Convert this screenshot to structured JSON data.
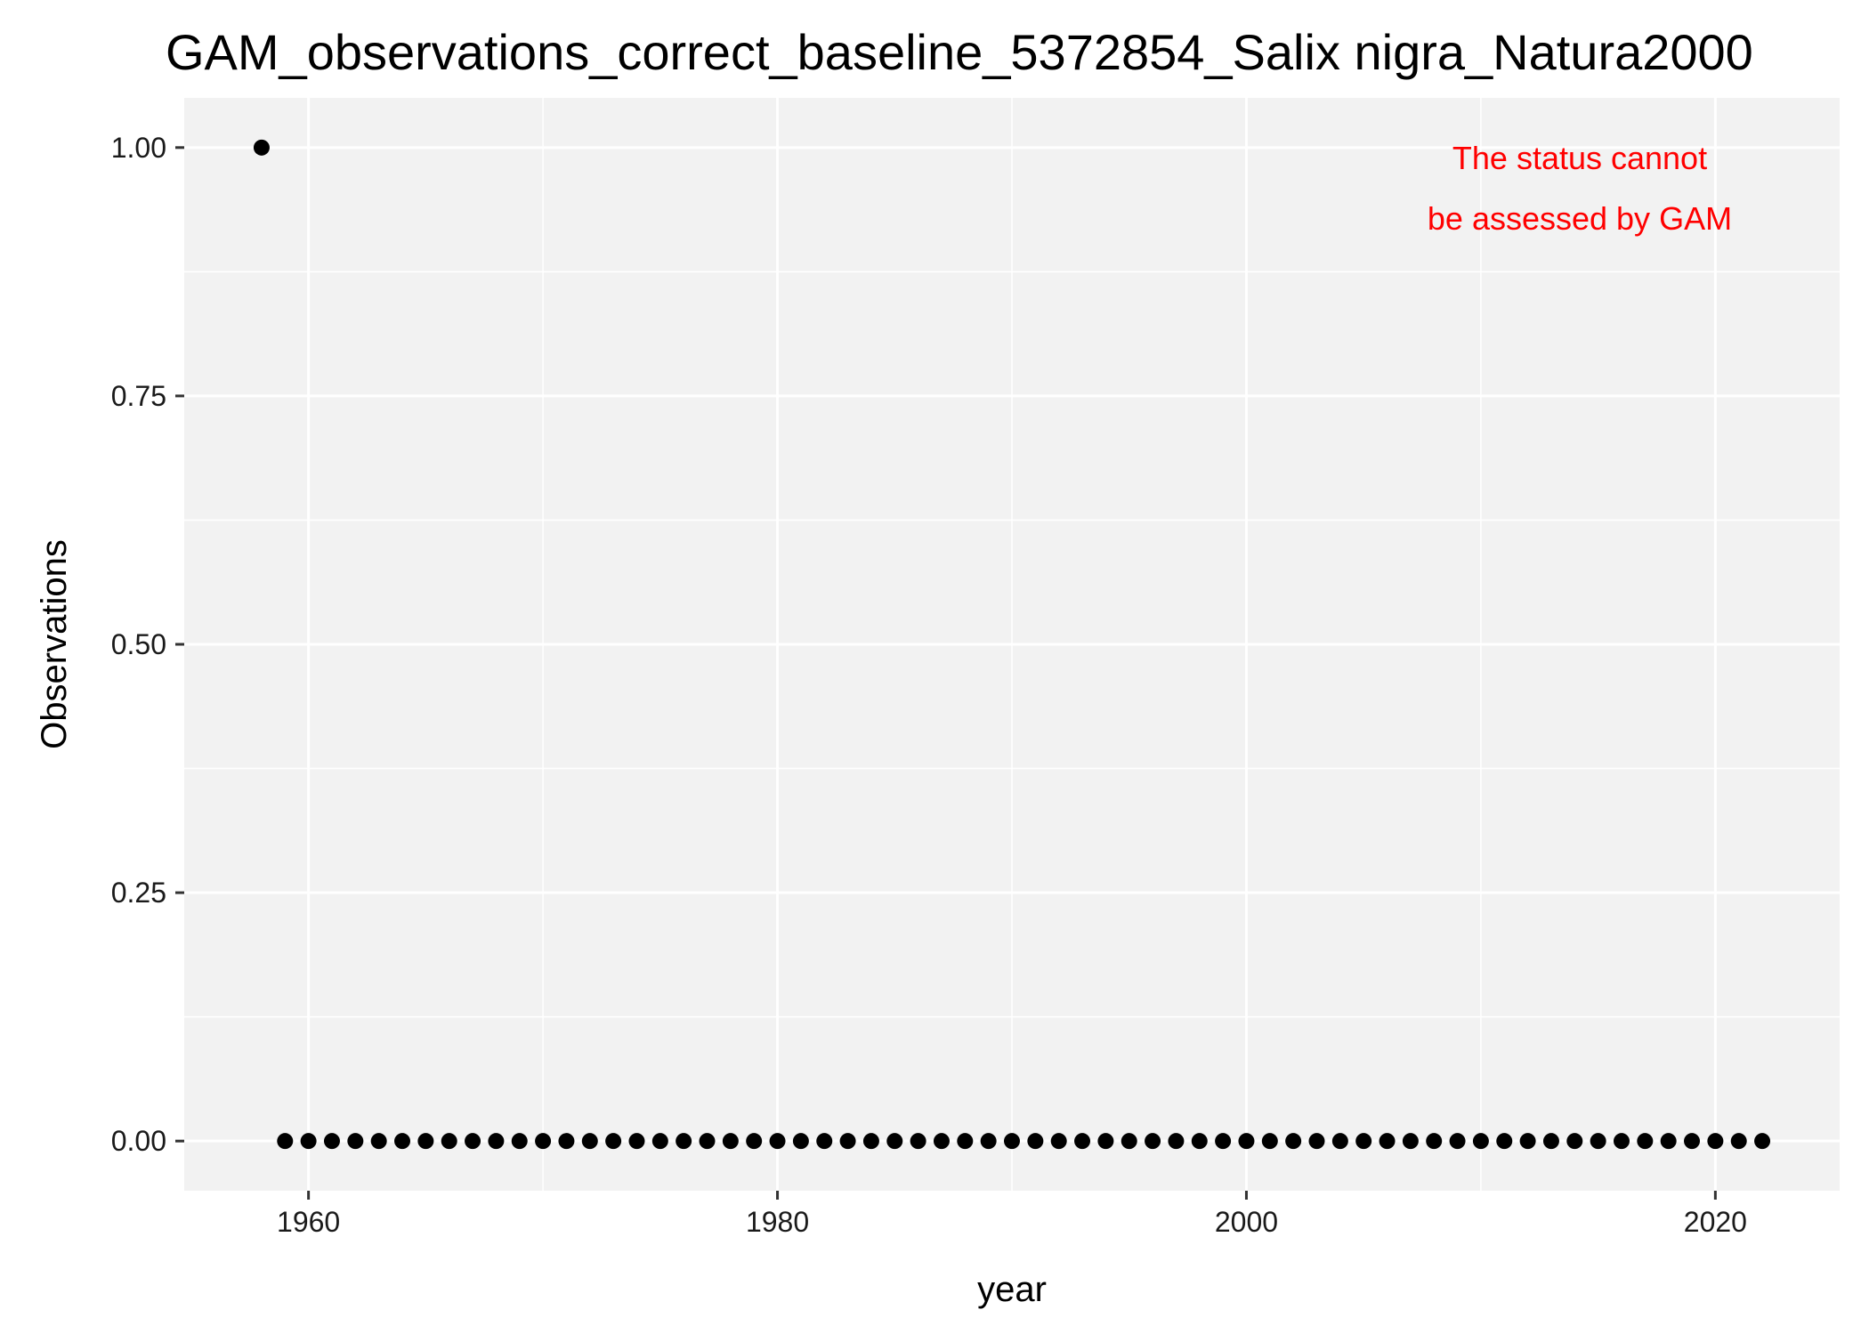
{
  "chart_data": {
    "type": "scatter",
    "title": "GAM_observations_correct_baseline_5372854_Salix nigra_Natura2000",
    "xlabel": "year",
    "ylabel": "Observations",
    "xlim": [
      1954.7,
      2025.3
    ],
    "ylim": [
      -0.05,
      1.05
    ],
    "x_ticks": [
      1960,
      1980,
      2000,
      2020
    ],
    "x_tick_labels": [
      "1960",
      "1980",
      "2000",
      "2020"
    ],
    "x_minor_ticks": [
      1970,
      1990,
      2010
    ],
    "y_ticks": [
      0,
      0.25,
      0.5,
      0.75,
      1
    ],
    "y_tick_labels": [
      "0.00",
      "0.25",
      "0.50",
      "0.75",
      "1.00"
    ],
    "y_minor_ticks": [
      0.125,
      0.375,
      0.625,
      0.875
    ],
    "grid": true,
    "legend": "none",
    "series": [
      {
        "x": [
          1958,
          1959,
          1960,
          1961,
          1962,
          1963,
          1964,
          1965,
          1966,
          1967,
          1968,
          1969,
          1970,
          1971,
          1972,
          1973,
          1974,
          1975,
          1976,
          1977,
          1978,
          1979,
          1980,
          1981,
          1982,
          1983,
          1984,
          1985,
          1986,
          1987,
          1988,
          1989,
          1990,
          1991,
          1992,
          1993,
          1994,
          1995,
          1996,
          1997,
          1998,
          1999,
          2000,
          2001,
          2002,
          2003,
          2004,
          2005,
          2006,
          2007,
          2008,
          2009,
          2010,
          2011,
          2012,
          2013,
          2014,
          2015,
          2016,
          2017,
          2018,
          2019,
          2020,
          2021,
          2022
        ],
        "values": [
          1,
          0,
          0,
          0,
          0,
          0,
          0,
          0,
          0,
          0,
          0,
          0,
          0,
          0,
          0,
          0,
          0,
          0,
          0,
          0,
          0,
          0,
          0,
          0,
          0,
          0,
          0,
          0,
          0,
          0,
          0,
          0,
          0,
          0,
          0,
          0,
          0,
          0,
          0,
          0,
          0,
          0,
          0,
          0,
          0,
          0,
          0,
          0,
          0,
          0,
          0,
          0,
          0,
          0,
          0,
          0,
          0,
          0,
          0,
          0,
          0,
          0,
          0,
          0,
          0
        ],
        "color": "#000000"
      }
    ],
    "annotation": {
      "lines": [
        "The status cannot",
        "be assessed by GAM"
      ],
      "color": "#ff0000"
    },
    "panel_color": "#f2f2f2",
    "grid_color": "#ffffff"
  }
}
